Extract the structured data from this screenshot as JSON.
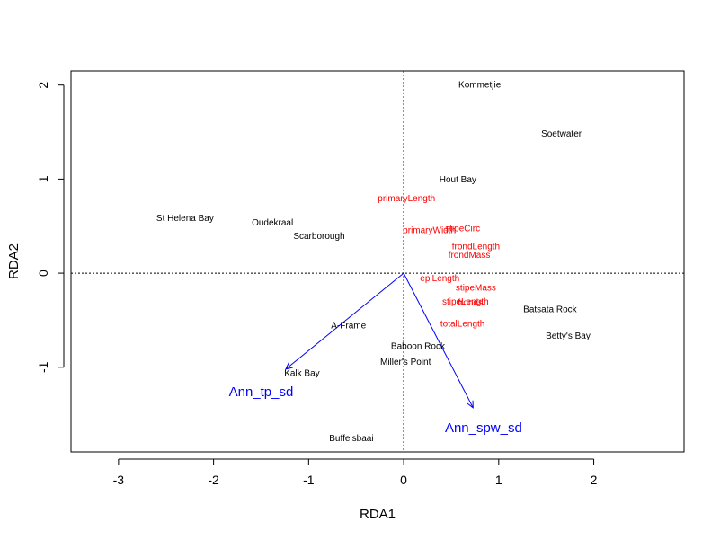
{
  "chart_data": {
    "type": "scatter",
    "title": "",
    "xlabel": "RDA1",
    "ylabel": "RDA2",
    "xlim": [
      -3.5,
      2.95
    ],
    "ylim": [
      -1.9,
      2.15
    ],
    "x_ticks": [
      -3,
      -2,
      -1,
      0,
      1,
      2
    ],
    "y_ticks": [
      -1,
      0,
      1,
      2
    ],
    "x_tick_labels": [
      "-3",
      "-2",
      "-1",
      "0",
      "1",
      "2"
    ],
    "y_tick_labels": [
      "-1",
      "0",
      "1",
      "2"
    ],
    "zero_lines": true,
    "grid": false,
    "sites": [
      {
        "name": "Kommetjie",
        "x": 0.8,
        "y": 2.0
      },
      {
        "name": "Soetwater",
        "x": 1.66,
        "y": 1.48
      },
      {
        "name": "Hout Bay",
        "x": 0.57,
        "y": 0.99
      },
      {
        "name": "St Helena Bay",
        "x": -2.3,
        "y": 0.58
      },
      {
        "name": "Oudekraal",
        "x": -1.38,
        "y": 0.53
      },
      {
        "name": "Scarborough",
        "x": -0.89,
        "y": 0.39
      },
      {
        "name": "Batsata Rock",
        "x": 1.54,
        "y": -0.39
      },
      {
        "name": "Betty's Bay",
        "x": 1.73,
        "y": -0.67
      },
      {
        "name": "A-Frame",
        "x": -0.58,
        "y": -0.56
      },
      {
        "name": "Baboon Rock",
        "x": 0.15,
        "y": -0.78
      },
      {
        "name": "Miller's Point",
        "x": 0.02,
        "y": -0.95
      },
      {
        "name": "Kalk Bay",
        "x": -1.07,
        "y": -1.07
      },
      {
        "name": "Buffelsbaai",
        "x": -0.55,
        "y": -1.76
      }
    ],
    "species": [
      {
        "name": "primaryLength",
        "x": 0.03,
        "y": 0.79
      },
      {
        "name": "stipeCirc",
        "x": 0.62,
        "y": 0.47
      },
      {
        "name": "primaryWidth",
        "x": 0.27,
        "y": 0.45
      },
      {
        "name": "frondLength",
        "x": 0.76,
        "y": 0.28
      },
      {
        "name": "frondMass",
        "x": 0.69,
        "y": 0.19
      },
      {
        "name": "epiLength",
        "x": 0.38,
        "y": -0.06
      },
      {
        "name": "stipeMass",
        "x": 0.76,
        "y": -0.16
      },
      {
        "name": "stipeLength",
        "x": 0.65,
        "y": -0.31
      },
      {
        "name": "fronds",
        "x": 0.7,
        "y": -0.32
      },
      {
        "name": "totalLength",
        "x": 0.62,
        "y": -0.54
      }
    ],
    "biplot_vectors": [
      {
        "name": "Ann_tp_sd",
        "x": -1.24,
        "y": -1.02,
        "label_x": -1.5,
        "label_y": -1.27
      },
      {
        "name": "Ann_spw_sd",
        "x": 0.73,
        "y": -1.43,
        "label_x": 0.84,
        "label_y": -1.65
      }
    ],
    "colors": {
      "sites": "#000000",
      "species": "#ff0000",
      "vectors": "#0000ff",
      "axes": "#000000"
    }
  }
}
